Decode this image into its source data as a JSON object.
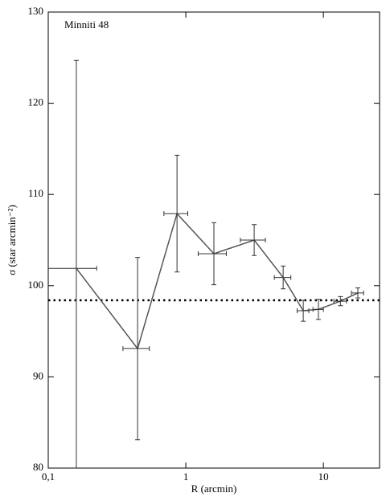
{
  "chart_data": {
    "type": "line",
    "annotation": "Minniti 48",
    "xlabel": "R (arcmin)",
    "ylabel": "σ (star arcmin⁻²)",
    "xscale": "log",
    "xlim": [
      0.1,
      25.6
    ],
    "ylim": [
      80,
      130
    ],
    "xticks": [
      {
        "value": 0.1,
        "label": "0,1"
      },
      1,
      10
    ],
    "yticks": [
      80,
      90,
      100,
      110,
      120,
      130
    ],
    "color": "#555555",
    "hline": 98.4,
    "hline_color": "#000000",
    "x": [
      0.16,
      0.446,
      0.863,
      1.6,
      3.14,
      5.1,
      7.14,
      9.2,
      13.3,
      17.8
    ],
    "values": [
      101.9,
      93.1,
      107.9,
      103.5,
      105.0,
      100.9,
      97.25,
      97.4,
      98.3,
      99.2
    ],
    "yerr": [
      22.8,
      10,
      6.4,
      3.4,
      1.7,
      1.25,
      1.15,
      1.1,
      0.5,
      0.55
    ],
    "xerr": [
      0.065,
      0.097,
      0.17,
      0.37,
      0.65,
      0.7,
      0.7,
      0.8,
      1.4,
      1.8
    ]
  }
}
